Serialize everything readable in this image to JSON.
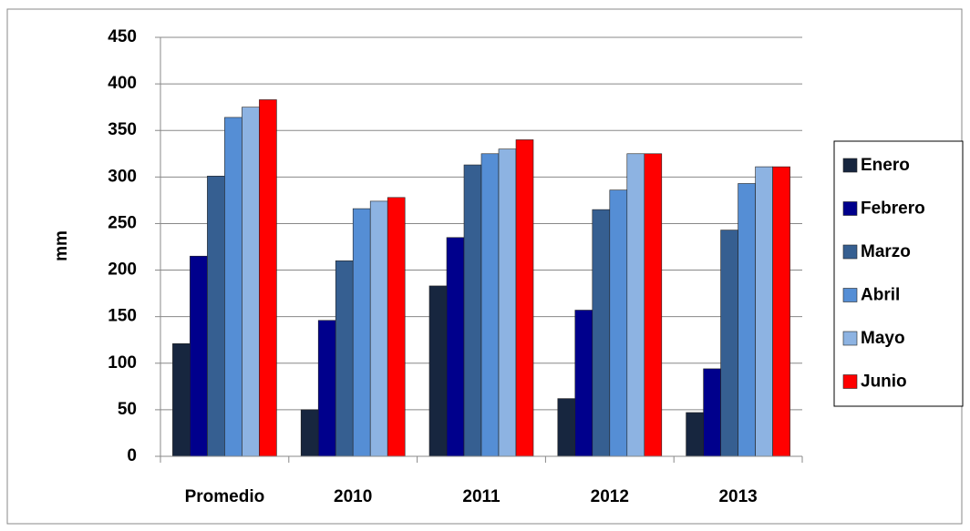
{
  "chart_data": {
    "type": "bar",
    "y_label": "mm",
    "categories": [
      "Promedio",
      "2010",
      "2011",
      "2012",
      "2013"
    ],
    "series": [
      {
        "name": "Enero",
        "color": "#17263f",
        "values": [
          121,
          50,
          183,
          62,
          47
        ]
      },
      {
        "name": "Febrero",
        "color": "#00008c",
        "values": [
          215,
          146,
          235,
          157,
          94
        ]
      },
      {
        "name": "Marzo",
        "color": "#365f91",
        "values": [
          301,
          210,
          313,
          265,
          243
        ]
      },
      {
        "name": "Abril",
        "color": "#558ed5",
        "values": [
          364,
          266,
          325,
          286,
          293
        ]
      },
      {
        "name": "Mayo",
        "color": "#8db3e2",
        "values": [
          375,
          274,
          330,
          325,
          311
        ]
      },
      {
        "name": "Junio",
        "color": "#ff0000",
        "values": [
          383,
          278,
          340,
          325,
          311
        ]
      }
    ],
    "ylim": [
      0,
      450
    ],
    "yticks": [
      0,
      50,
      100,
      150,
      200,
      250,
      300,
      350,
      400,
      450
    ],
    "grid": true,
    "legend": "right"
  }
}
